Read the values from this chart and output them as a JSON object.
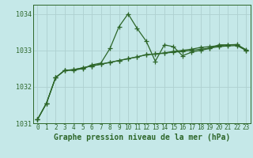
{
  "title": "Graphe pression niveau de la mer (hPa)",
  "bg_color": "#c5e8e8",
  "grid_color": "#aed0d0",
  "line_color": "#2d6629",
  "text_color": "#2d6629",
  "x_values": [
    0,
    1,
    2,
    3,
    4,
    5,
    6,
    7,
    8,
    9,
    10,
    11,
    12,
    13,
    14,
    15,
    16,
    17,
    18,
    19,
    20,
    21,
    22,
    23
  ],
  "spiky": [
    1031.1,
    1031.55,
    1032.25,
    1032.45,
    1032.45,
    1032.5,
    1032.6,
    1032.65,
    1033.05,
    1033.65,
    1034.0,
    1033.6,
    1033.25,
    1032.7,
    1033.15,
    1033.1,
    1032.85,
    1032.95,
    1033.0,
    1033.05,
    1033.15,
    1033.15,
    1033.15,
    1033.0
  ],
  "trend1": [
    1031.1,
    1031.55,
    1032.25,
    1032.45,
    1032.47,
    1032.52,
    1032.57,
    1032.62,
    1032.67,
    1032.72,
    1032.77,
    1032.82,
    1032.88,
    1032.9,
    1032.92,
    1032.95,
    1032.97,
    1033.0,
    1033.03,
    1033.06,
    1033.1,
    1033.12,
    1033.13,
    1033.0
  ],
  "trend2": [
    1031.1,
    1031.55,
    1032.25,
    1032.45,
    1032.47,
    1032.52,
    1032.57,
    1032.62,
    1032.67,
    1032.72,
    1032.77,
    1032.82,
    1032.88,
    1032.9,
    1032.93,
    1032.97,
    1033.0,
    1033.03,
    1033.08,
    1033.1,
    1033.13,
    1033.15,
    1033.16,
    1033.02
  ],
  "ylim": [
    1031.0,
    1034.25
  ],
  "yticks": [
    1031,
    1032,
    1033,
    1034
  ],
  "xticks": [
    0,
    1,
    2,
    3,
    4,
    5,
    6,
    7,
    8,
    9,
    10,
    11,
    12,
    13,
    14,
    15,
    16,
    17,
    18,
    19,
    20,
    21,
    22,
    23
  ],
  "xlabel_fontsize": 7,
  "tick_fontsize": 5.5
}
